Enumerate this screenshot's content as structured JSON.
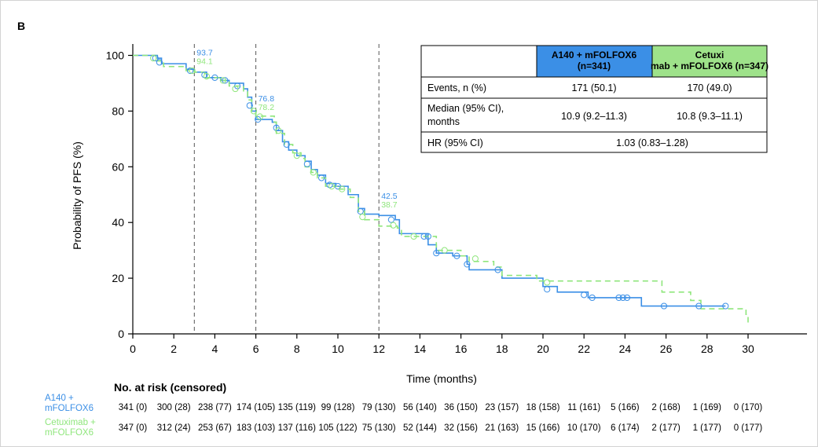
{
  "panel_label": "B",
  "chart_data": {
    "type": "line",
    "title": "",
    "xlabel": "Time (months)",
    "ylabel": "Probability of PFS (%)",
    "xlim": [
      0,
      32.5
    ],
    "ylim": [
      0,
      105
    ],
    "x_ticks": [
      "0",
      "2",
      "4",
      "6",
      "8",
      "10",
      "12",
      "14",
      "16",
      "18",
      "20",
      "22",
      "24",
      "26",
      "28",
      "30"
    ],
    "y_ticks": [
      "0",
      "20",
      "40",
      "60",
      "80",
      "100"
    ],
    "landmarks": [
      {
        "x": 3,
        "label_a140": "93.7",
        "label_cetux": "94.1"
      },
      {
        "x": 6,
        "label_a140": "76.8",
        "label_cetux": "78.2"
      },
      {
        "x": 12,
        "label_a140": "42.5",
        "label_cetux": "38.7"
      }
    ],
    "series": [
      {
        "name": "A140 + mFOLFOX6",
        "color": "#3b8fe6",
        "dash": "solid",
        "steps": [
          [
            0,
            100
          ],
          [
            1.2,
            99
          ],
          [
            1.4,
            97
          ],
          [
            2.6,
            95
          ],
          [
            3,
            94
          ],
          [
            3.6,
            92
          ],
          [
            4.3,
            91
          ],
          [
            4.7,
            90
          ],
          [
            5.4,
            88
          ],
          [
            5.6,
            85
          ],
          [
            5.8,
            80
          ],
          [
            6,
            77
          ],
          [
            6.8,
            76
          ],
          [
            7,
            73
          ],
          [
            7.3,
            69
          ],
          [
            7.6,
            66
          ],
          [
            8,
            64
          ],
          [
            8.4,
            62
          ],
          [
            8.7,
            59
          ],
          [
            9,
            57
          ],
          [
            9.4,
            54
          ],
          [
            9.9,
            53
          ],
          [
            10.5,
            50
          ],
          [
            11,
            45
          ],
          [
            11.3,
            43
          ],
          [
            12,
            42.5
          ],
          [
            12.8,
            41
          ],
          [
            13,
            36
          ],
          [
            14.4,
            32
          ],
          [
            14.8,
            29
          ],
          [
            15.6,
            28
          ],
          [
            16.3,
            25
          ],
          [
            16.4,
            23
          ],
          [
            17.6,
            23
          ],
          [
            18,
            20
          ],
          [
            19.2,
            20
          ],
          [
            20,
            17
          ],
          [
            20.7,
            15
          ],
          [
            22.2,
            13
          ],
          [
            24,
            13
          ],
          [
            24.8,
            10
          ],
          [
            28.9,
            10
          ]
        ],
        "censors": [
          [
            1.1,
            99
          ],
          [
            1.3,
            97.5
          ],
          [
            2.8,
            94.5
          ],
          [
            3.5,
            93
          ],
          [
            4,
            92
          ],
          [
            4.5,
            91
          ],
          [
            5.1,
            89
          ],
          [
            5.7,
            82
          ],
          [
            6.1,
            77
          ],
          [
            7,
            74
          ],
          [
            7.5,
            68
          ],
          [
            8.5,
            61
          ],
          [
            9.2,
            56
          ],
          [
            9.6,
            53.5
          ],
          [
            10,
            53
          ],
          [
            11.1,
            44
          ],
          [
            12.6,
            41
          ],
          [
            14.2,
            35
          ],
          [
            14.4,
            35
          ],
          [
            14.8,
            29
          ],
          [
            15.8,
            28
          ],
          [
            16.3,
            25
          ],
          [
            17.8,
            23
          ],
          [
            20.2,
            16
          ],
          [
            22,
            14
          ],
          [
            22.4,
            13
          ],
          [
            23.7,
            13
          ],
          [
            23.9,
            13
          ],
          [
            24.1,
            13
          ],
          [
            25.9,
            10
          ],
          [
            27.6,
            10
          ],
          [
            28.9,
            10
          ]
        ]
      },
      {
        "name": "Cetuximab + mFOLFOX6",
        "color": "#8fe67c",
        "dash": "7,5",
        "steps": [
          [
            0,
            100
          ],
          [
            1.2,
            98
          ],
          [
            1.5,
            96
          ],
          [
            2.6,
            94.5
          ],
          [
            3,
            94
          ],
          [
            3.5,
            92
          ],
          [
            4.2,
            91
          ],
          [
            4.7,
            89
          ],
          [
            5.4,
            87
          ],
          [
            5.6,
            84
          ],
          [
            5.8,
            80
          ],
          [
            6,
            78.2
          ],
          [
            6.9,
            76
          ],
          [
            7,
            72
          ],
          [
            7.4,
            68
          ],
          [
            7.8,
            65
          ],
          [
            8.2,
            63
          ],
          [
            8.4,
            60
          ],
          [
            8.7,
            58
          ],
          [
            9,
            56
          ],
          [
            9.4,
            53
          ],
          [
            10,
            52
          ],
          [
            10.6,
            49
          ],
          [
            11,
            44
          ],
          [
            11.3,
            41
          ],
          [
            12,
            38.7
          ],
          [
            12.9,
            38
          ],
          [
            13.1,
            35
          ],
          [
            14.4,
            35
          ],
          [
            14.8,
            30
          ],
          [
            16,
            28
          ],
          [
            16.4,
            26
          ],
          [
            17.6,
            24
          ],
          [
            18,
            21
          ],
          [
            19.4,
            21
          ],
          [
            19.7,
            19
          ],
          [
            20,
            19
          ],
          [
            25.8,
            15
          ],
          [
            27.2,
            12
          ],
          [
            27.7,
            9
          ],
          [
            29.9,
            7
          ],
          [
            30,
            3
          ]
        ],
        "censors": [
          [
            1,
            99
          ],
          [
            2.9,
            94.5
          ],
          [
            3.6,
            92.5
          ],
          [
            4.4,
            91
          ],
          [
            5,
            88
          ],
          [
            5.9,
            80
          ],
          [
            6.2,
            78
          ],
          [
            7.1,
            73
          ],
          [
            8,
            64
          ],
          [
            8.8,
            58
          ],
          [
            9.7,
            53
          ],
          [
            10.2,
            52
          ],
          [
            11.2,
            42
          ],
          [
            12.7,
            39
          ],
          [
            13.7,
            35
          ],
          [
            15.2,
            30
          ],
          [
            16.7,
            27
          ],
          [
            20.2,
            18.5
          ]
        ]
      }
    ],
    "legend_table": {
      "col_headers": [
        "A140 + mFOLFOX6 (n=341)",
        "Cetuximab + mFOLFOX6 (n=347)"
      ],
      "col_colors": [
        "#3b8fe6",
        "#9ee28a"
      ],
      "rows": [
        {
          "label": "Events, n (%)",
          "a140": "171 (50.1)",
          "cetux": "170 (49.0)"
        },
        {
          "label_line1": "Median (95% CI),",
          "label_line2": "months",
          "a140": "10.9 (9.2–11.3)",
          "cetux": "10.8 (9.3–11.1)"
        },
        {
          "label": "HR (95% CI)",
          "combined": "1.03 (0.83–1.28)"
        }
      ]
    },
    "risk_table": {
      "title": "No. at risk (censored)",
      "rows": [
        {
          "label_line1": "A140 +",
          "label_line2": "mFOLFOX6",
          "color": "#3b8fe6",
          "values": [
            "341 (0)",
            "300 (28)",
            "238 (77)",
            "174 (105)",
            "135 (119)",
            "99 (128)",
            "79 (130)",
            "56 (140)",
            "36 (150)",
            "23 (157)",
            "18 (158)",
            "11 (161)",
            "5 (166)",
            "2 (168)",
            "1 (169)",
            "0 (170)"
          ]
        },
        {
          "label_line1": "Cetuximab +",
          "label_line2": "mFOLFOX6",
          "color": "#8fe67c",
          "values": [
            "347 (0)",
            "312 (24)",
            "253 (67)",
            "183 (103)",
            "137 (116)",
            "105 (122)",
            "75 (130)",
            "52 (144)",
            "32 (156)",
            "21 (163)",
            "15 (166)",
            "10 (170)",
            "6 (174)",
            "2 (177)",
            "1 (177)",
            "0 (177)"
          ]
        }
      ]
    }
  }
}
